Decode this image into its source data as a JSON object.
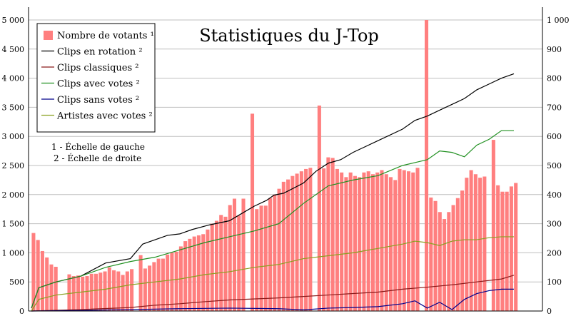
{
  "chart_data": {
    "type": "bar",
    "title": "Statistiques du J-Top",
    "xlabel": "",
    "ylabel": "",
    "left_axis": {
      "ylim": [
        0,
        5000
      ],
      "ticks": [
        "0",
        "500",
        "1 000",
        "1 500",
        "2 000",
        "2 500",
        "3 000",
        "3 500",
        "4 000",
        "4 500",
        "5 000"
      ]
    },
    "right_axis": {
      "ylim": [
        0,
        1000
      ],
      "ticks": [
        "0",
        "100",
        "200",
        "300",
        "400",
        "500",
        "600",
        "700",
        "800",
        "900",
        "1 000"
      ]
    },
    "grid": true,
    "legend_placement": "top-left",
    "notes": [
      "1 - Échelle de gauche",
      "2 - Échelle de droite"
    ],
    "bars": {
      "name": "Nombre de votants ¹",
      "color": "#ff7f7f",
      "axis": "left",
      "values": [
        1340,
        1220,
        1030,
        920,
        800,
        760,
        null,
        null,
        630,
        600,
        610,
        590,
        600,
        640,
        640,
        660,
        680,
        750,
        700,
        680,
        620,
        680,
        720,
        null,
        960,
        730,
        780,
        840,
        900,
        900,
        970,
        1000,
        1020,
        1110,
        1200,
        1240,
        1280,
        1300,
        1320,
        1400,
        1500,
        1550,
        1650,
        1620,
        1820,
        1930,
        1640,
        1930,
        null,
        3390,
        1750,
        1810,
        1810,
        1940,
        2000,
        2100,
        2220,
        2260,
        2320,
        2360,
        2400,
        2440,
        2460,
        null,
        3530,
        2450,
        2640,
        2630,
        2440,
        2380,
        2300,
        2380,
        2320,
        2300,
        2380,
        2400,
        2350,
        2380,
        2420,
        2350,
        2300,
        2250,
        2440,
        2420,
        2400,
        2380,
        2460,
        null,
        5000,
        1950,
        1890,
        1700,
        1580,
        1700,
        1820,
        1940,
        2070,
        2290,
        2420,
        2350,
        2290,
        2310,
        null,
        2940,
        2160,
        2050,
        2050,
        2140,
        2200
      ]
    },
    "series": [
      {
        "name": "Clips en rotation ²",
        "color": "#000000",
        "axis": "right",
        "values": [
          [
            0,
            10
          ],
          [
            3,
            80
          ],
          [
            10,
            100
          ],
          [
            20,
            120
          ],
          [
            30,
            165
          ],
          [
            40,
            180
          ],
          [
            45,
            230
          ],
          [
            50,
            245
          ],
          [
            55,
            260
          ],
          [
            60,
            265
          ],
          [
            65,
            280
          ],
          [
            72,
            296
          ],
          [
            80,
            310
          ],
          [
            85,
            335
          ],
          [
            90,
            360
          ],
          [
            95,
            380
          ],
          [
            98,
            398
          ],
          [
            102,
            405
          ],
          [
            110,
            440
          ],
          [
            115,
            480
          ],
          [
            120,
            508
          ],
          [
            125,
            520
          ],
          [
            130,
            545
          ],
          [
            140,
            585
          ],
          [
            150,
            625
          ],
          [
            155,
            655
          ],
          [
            160,
            670
          ],
          [
            165,
            690
          ],
          [
            170,
            710
          ],
          [
            175,
            730
          ],
          [
            180,
            760
          ],
          [
            185,
            780
          ],
          [
            190,
            800
          ],
          [
            195,
            815
          ]
        ]
      },
      {
        "name": "Clips classiques ²",
        "color": "#8b1a1a",
        "axis": "right",
        "values": [
          [
            0,
            0
          ],
          [
            20,
            5
          ],
          [
            40,
            12
          ],
          [
            50,
            20
          ],
          [
            60,
            25
          ],
          [
            70,
            32
          ],
          [
            80,
            38
          ],
          [
            100,
            45
          ],
          [
            110,
            50
          ],
          [
            120,
            55
          ],
          [
            130,
            60
          ],
          [
            140,
            65
          ],
          [
            150,
            75
          ],
          [
            160,
            82
          ],
          [
            170,
            90
          ],
          [
            180,
            100
          ],
          [
            190,
            110
          ],
          [
            195,
            123
          ]
        ]
      },
      {
        "name": "Clips avec votes ²",
        "color": "#209020",
        "axis": "right",
        "values": [
          [
            0,
            10
          ],
          [
            3,
            80
          ],
          [
            10,
            100
          ],
          [
            20,
            120
          ],
          [
            30,
            150
          ],
          [
            40,
            170
          ],
          [
            50,
            185
          ],
          [
            60,
            210
          ],
          [
            70,
            235
          ],
          [
            80,
            255
          ],
          [
            90,
            275
          ],
          [
            100,
            300
          ],
          [
            110,
            370
          ],
          [
            120,
            430
          ],
          [
            130,
            450
          ],
          [
            140,
            465
          ],
          [
            150,
            500
          ],
          [
            155,
            510
          ],
          [
            160,
            520
          ],
          [
            165,
            550
          ],
          [
            170,
            545
          ],
          [
            175,
            530
          ],
          [
            180,
            570
          ],
          [
            185,
            590
          ],
          [
            190,
            620
          ],
          [
            195,
            620
          ]
        ]
      },
      {
        "name": "Clips sans votes ²",
        "color": "#00008b",
        "axis": "right",
        "values": [
          [
            0,
            0
          ],
          [
            20,
            2
          ],
          [
            40,
            5
          ],
          [
            60,
            8
          ],
          [
            80,
            10
          ],
          [
            100,
            8
          ],
          [
            110,
            4
          ],
          [
            120,
            10
          ],
          [
            130,
            12
          ],
          [
            140,
            15
          ],
          [
            150,
            25
          ],
          [
            155,
            35
          ],
          [
            160,
            10
          ],
          [
            165,
            30
          ],
          [
            170,
            5
          ],
          [
            175,
            40
          ],
          [
            180,
            60
          ],
          [
            185,
            70
          ],
          [
            190,
            75
          ],
          [
            195,
            75
          ]
        ]
      },
      {
        "name": "Artistes avec votes ²",
        "color": "#8aa020",
        "axis": "right",
        "values": [
          [
            0,
            0
          ],
          [
            3,
            40
          ],
          [
            10,
            55
          ],
          [
            20,
            65
          ],
          [
            30,
            75
          ],
          [
            40,
            90
          ],
          [
            50,
            100
          ],
          [
            60,
            110
          ],
          [
            70,
            125
          ],
          [
            80,
            135
          ],
          [
            90,
            150
          ],
          [
            100,
            160
          ],
          [
            110,
            180
          ],
          [
            120,
            190
          ],
          [
            130,
            200
          ],
          [
            140,
            215
          ],
          [
            150,
            230
          ],
          [
            155,
            240
          ],
          [
            160,
            235
          ],
          [
            165,
            225
          ],
          [
            170,
            240
          ],
          [
            175,
            245
          ],
          [
            180,
            245
          ],
          [
            185,
            252
          ],
          [
            190,
            255
          ],
          [
            195,
            255
          ]
        ]
      }
    ]
  }
}
